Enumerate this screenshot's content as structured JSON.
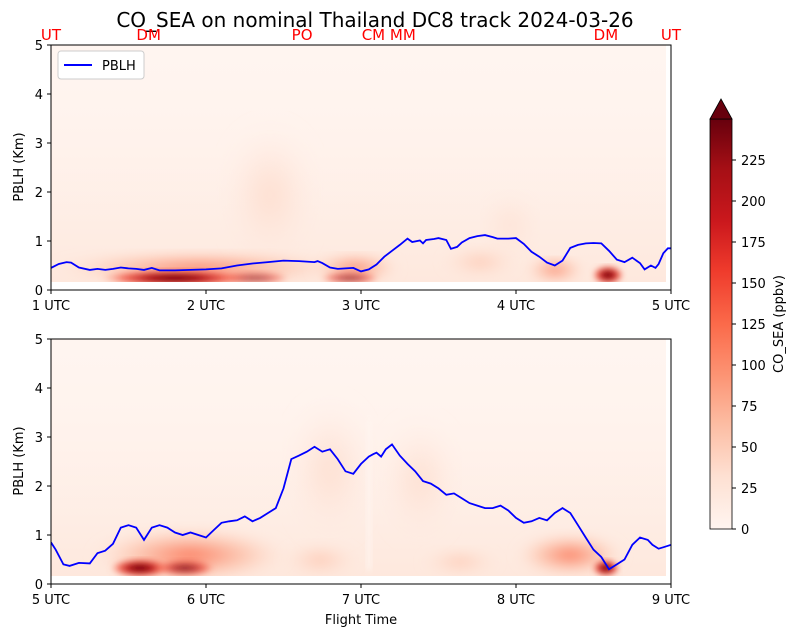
{
  "chart_data": {
    "title": "CO_SEA on nominal Thailand DC8 track 2024-03-26",
    "type": "heatmap",
    "xlabel": "Flight Time",
    "ylabel": "PBLH (Km)",
    "line_color": "#0000ff",
    "colormap": "Reds",
    "site_label_color": "#ff0000",
    "legend": {
      "placement": "upper-left",
      "entry": "PBLH"
    },
    "colorbar": {
      "label": "CO_SEA (ppbv)",
      "range": [
        0,
        250
      ],
      "ticks": [
        "0",
        "25",
        "50",
        "75",
        "100",
        "125",
        "150",
        "175",
        "200",
        "225"
      ],
      "extend": "max"
    },
    "panels": [
      {
        "xlim": [
          1,
          5
        ],
        "ylim": [
          0,
          5
        ],
        "xticks": [
          "1 UTC",
          "2 UTC",
          "3 UTC",
          "4 UTC",
          "5 UTC"
        ],
        "yticks": [
          "0",
          "1",
          "2",
          "3",
          "4",
          "5"
        ],
        "site_labels": [
          {
            "label": "UT",
            "x": 1.0
          },
          {
            "label": "DM",
            "x": 1.63
          },
          {
            "label": "PO",
            "x": 2.62
          },
          {
            "label": "CM",
            "x": 3.08
          },
          {
            "label": "MM",
            "x": 3.27
          },
          {
            "label": "DM",
            "x": 4.58
          },
          {
            "label": "UT",
            "x": 5.0
          }
        ],
        "pblh": {
          "x": [
            1.0,
            1.05,
            1.1,
            1.13,
            1.18,
            1.25,
            1.3,
            1.35,
            1.4,
            1.45,
            1.5,
            1.55,
            1.6,
            1.65,
            1.7,
            1.75,
            1.8,
            1.9,
            2.0,
            2.1,
            2.2,
            2.3,
            2.4,
            2.5,
            2.6,
            2.7,
            2.72,
            2.75,
            2.8,
            2.85,
            2.9,
            2.95,
            3.0,
            3.05,
            3.1,
            3.15,
            3.2,
            3.25,
            3.3,
            3.33,
            3.38,
            3.4,
            3.42,
            3.47,
            3.5,
            3.55,
            3.58,
            3.62,
            3.65,
            3.7,
            3.75,
            3.8,
            3.85,
            3.88,
            3.95,
            4.0,
            4.05,
            4.1,
            4.15,
            4.2,
            4.25,
            4.3,
            4.35,
            4.4,
            4.45,
            4.5,
            4.55,
            4.6,
            4.65,
            4.7,
            4.75,
            4.8,
            4.83,
            4.87,
            4.9,
            4.92,
            4.95,
            4.98,
            5.0
          ],
          "y": [
            0.45,
            0.53,
            0.57,
            0.56,
            0.46,
            0.41,
            0.43,
            0.41,
            0.43,
            0.46,
            0.44,
            0.43,
            0.41,
            0.45,
            0.4,
            0.4,
            0.4,
            0.41,
            0.42,
            0.44,
            0.5,
            0.54,
            0.57,
            0.6,
            0.59,
            0.57,
            0.59,
            0.55,
            0.46,
            0.43,
            0.44,
            0.45,
            0.38,
            0.42,
            0.52,
            0.68,
            0.8,
            0.92,
            1.05,
            0.98,
            1.01,
            0.95,
            1.02,
            1.04,
            1.06,
            1.02,
            0.84,
            0.88,
            0.97,
            1.06,
            1.1,
            1.12,
            1.08,
            1.05,
            1.05,
            1.06,
            0.94,
            0.78,
            0.68,
            0.56,
            0.5,
            0.6,
            0.86,
            0.92,
            0.95,
            0.96,
            0.95,
            0.8,
            0.62,
            0.57,
            0.66,
            0.55,
            0.42,
            0.5,
            0.45,
            0.53,
            0.75,
            0.85,
            0.85
          ]
        }
      },
      {
        "xlim": [
          5,
          9
        ],
        "ylim": [
          0,
          5
        ],
        "xticks": [
          "5 UTC",
          "6 UTC",
          "7 UTC",
          "8 UTC",
          "9 UTC"
        ],
        "yticks": [
          "0",
          "1",
          "2",
          "3",
          "4",
          "5"
        ],
        "pblh": {
          "x": [
            5.0,
            5.03,
            5.08,
            5.12,
            5.18,
            5.25,
            5.3,
            5.35,
            5.4,
            5.45,
            5.5,
            5.55,
            5.6,
            5.65,
            5.7,
            5.75,
            5.8,
            5.85,
            5.9,
            6.0,
            6.05,
            6.1,
            6.15,
            6.2,
            6.25,
            6.3,
            6.35,
            6.4,
            6.45,
            6.5,
            6.55,
            6.6,
            6.65,
            6.7,
            6.75,
            6.8,
            6.85,
            6.9,
            6.95,
            7.0,
            7.05,
            7.08,
            7.1,
            7.13,
            7.16,
            7.2,
            7.25,
            7.3,
            7.35,
            7.4,
            7.45,
            7.5,
            7.55,
            7.6,
            7.65,
            7.7,
            7.75,
            7.8,
            7.85,
            7.9,
            7.95,
            8.0,
            8.05,
            8.1,
            8.15,
            8.2,
            8.25,
            8.3,
            8.35,
            8.4,
            8.45,
            8.5,
            8.55,
            8.6,
            8.65,
            8.7,
            8.75,
            8.8,
            8.85,
            8.88,
            8.92,
            8.95,
            8.98,
            9.0
          ],
          "y": [
            0.85,
            0.7,
            0.4,
            0.37,
            0.43,
            0.42,
            0.63,
            0.68,
            0.82,
            1.15,
            1.2,
            1.15,
            0.9,
            1.15,
            1.2,
            1.15,
            1.05,
            1.0,
            1.05,
            0.95,
            1.1,
            1.25,
            1.28,
            1.3,
            1.38,
            1.28,
            1.35,
            1.45,
            1.55,
            1.95,
            2.55,
            2.62,
            2.7,
            2.8,
            2.7,
            2.75,
            2.55,
            2.3,
            2.25,
            2.45,
            2.6,
            2.65,
            2.68,
            2.6,
            2.75,
            2.85,
            2.62,
            2.45,
            2.3,
            2.1,
            2.05,
            1.95,
            1.82,
            1.85,
            1.75,
            1.65,
            1.6,
            1.55,
            1.55,
            1.6,
            1.5,
            1.35,
            1.25,
            1.28,
            1.35,
            1.3,
            1.45,
            1.55,
            1.45,
            1.2,
            0.95,
            0.7,
            0.55,
            0.3,
            0.4,
            0.5,
            0.8,
            0.95,
            0.9,
            0.8,
            0.72,
            0.75,
            0.78,
            0.8
          ]
        }
      }
    ]
  }
}
